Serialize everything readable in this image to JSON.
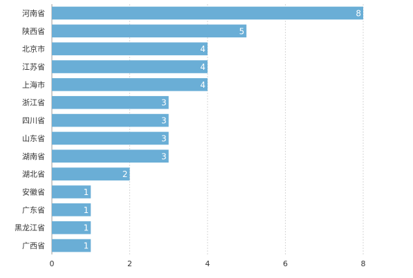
{
  "chart_data": {
    "type": "bar",
    "orientation": "horizontal",
    "categories": [
      "河南省",
      "陕西省",
      "北京市",
      "江苏省",
      "上海市",
      "浙江省",
      "四川省",
      "山东省",
      "湖南省",
      "湖北省",
      "安徽省",
      "广东省",
      "黑龙江省",
      "广西省"
    ],
    "values": [
      8,
      5,
      4,
      4,
      4,
      3,
      3,
      3,
      3,
      2,
      1,
      1,
      1,
      1
    ],
    "title": "",
    "xlabel": "",
    "ylabel": "",
    "xlim": [
      0,
      8
    ],
    "xticks": [
      "0",
      "2",
      "4",
      "6",
      "8"
    ],
    "grid": true,
    "bar_color": "#6aaed6",
    "data_labels": true
  }
}
